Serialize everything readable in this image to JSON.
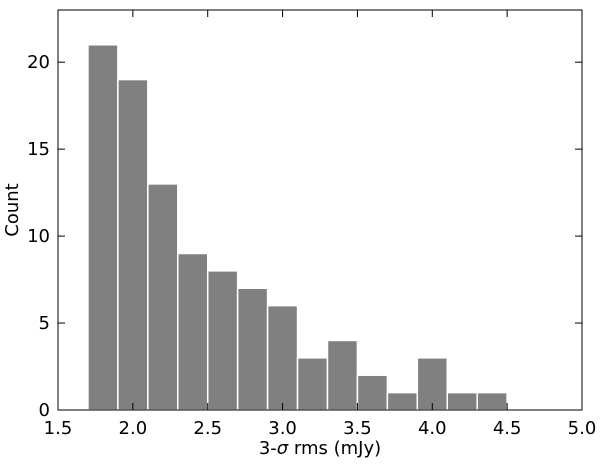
{
  "chart_data": {
    "type": "bar",
    "bin_edges": [
      1.7,
      1.9,
      2.1,
      2.3,
      2.5,
      2.7,
      2.9,
      3.1,
      3.3,
      3.5,
      3.7,
      3.9,
      4.1,
      4.3,
      4.5
    ],
    "values": [
      21,
      19,
      13,
      9,
      8,
      7,
      6,
      3,
      4,
      2,
      1,
      3,
      1,
      1
    ],
    "xlabel_prefix": "3-",
    "xlabel_symbol": "σ",
    "xlabel_suffix": " rms (mJy)",
    "ylabel": "Count",
    "xlim": [
      1.5,
      5.0
    ],
    "ylim": [
      0,
      23
    ],
    "x_ticks": [
      "1.5",
      "2.0",
      "2.5",
      "3.0",
      "3.5",
      "4.0",
      "4.5",
      "5.0"
    ],
    "x_tick_values": [
      1.5,
      2.0,
      2.5,
      3.0,
      3.5,
      4.0,
      4.5,
      5.0
    ],
    "y_ticks": [
      "0",
      "5",
      "10",
      "15",
      "20"
    ],
    "y_tick_values": [
      0,
      5,
      10,
      15,
      20
    ],
    "bar_color": "#808080",
    "bar_edge_color": "#ffffff",
    "grid": false
  }
}
